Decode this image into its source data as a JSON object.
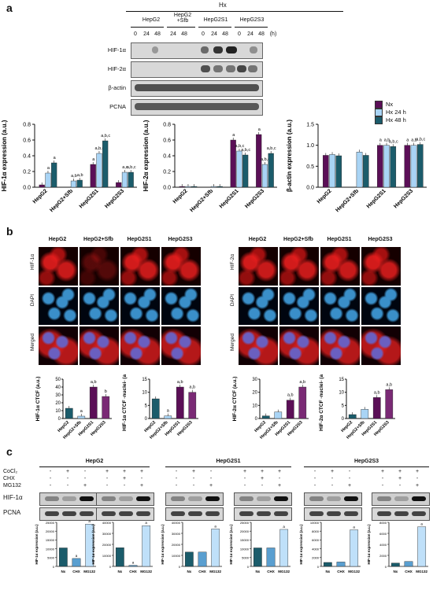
{
  "panels": {
    "a": "a",
    "b": "b",
    "c": "c"
  },
  "panel_a": {
    "hx_label": "Hx",
    "group_labels": [
      "HepG2",
      "HepG2\n+Sfb",
      "HepG2S1",
      "HepG2S3"
    ],
    "time_labels": [
      "0",
      "24",
      "48",
      "24",
      "48",
      "0",
      "24",
      "48",
      "0",
      "24",
      "48"
    ],
    "unit": "(h)",
    "row_labels": [
      "HIF-1α",
      "HIF-2α",
      "β-actin",
      "PCNA"
    ],
    "legend": [
      {
        "label": "Nx",
        "color": "#5b0f57"
      },
      {
        "label": "Hx 24 h",
        "color": "#a9d4f5"
      },
      {
        "label": "Hx 48 h",
        "color": "#1b5c6b"
      }
    ]
  },
  "chart_data": [
    {
      "type": "bar",
      "ylabel": "HIF-1α expression (a.u.)",
      "categories": [
        "HepG2",
        "HepG2+Sfb",
        "HepG2S1",
        "HepG2S3"
      ],
      "yticks": [
        "0.0",
        "0.2",
        "0.4",
        "0.6",
        "0.8"
      ],
      "ylim": [
        0,
        0.8
      ],
      "series": [
        {
          "name": "Nx",
          "values": [
            0.03,
            null,
            0.29,
            0.06
          ]
        },
        {
          "name": "Hx 24 h",
          "values": [
            0.18,
            0.08,
            0.43,
            0.19
          ]
        },
        {
          "name": "Hx 48 h",
          "values": [
            0.31,
            0.09,
            0.59,
            0.19
          ]
        }
      ],
      "annotations": [
        [
          "",
          "a",
          "a"
        ],
        [
          "",
          "a,b",
          "a,b"
        ],
        [
          "a",
          "a,b,c",
          "a,b,c"
        ],
        [
          "",
          "a,c",
          "a,b,c"
        ]
      ]
    },
    {
      "type": "bar",
      "ylabel": "HIF-2α expression (a.u.)",
      "categories": [
        "HepG2",
        "HepG2+Sfb",
        "HepG2S1",
        "HepG2S3"
      ],
      "yticks": [
        "0.0",
        "0.2",
        "0.4",
        "0.6",
        "0.8"
      ],
      "ylim": [
        0,
        0.8
      ],
      "series": [
        {
          "name": "Nx",
          "values": [
            0.01,
            null,
            0.6,
            0.67
          ]
        },
        {
          "name": "Hx 24 h",
          "values": [
            0.01,
            0.01,
            0.46,
            0.29
          ]
        },
        {
          "name": "Hx 48 h",
          "values": [
            0.01,
            0.01,
            0.41,
            0.43
          ]
        }
      ],
      "annotations": [
        [
          "",
          "",
          ""
        ],
        [
          "",
          "",
          ""
        ],
        [
          "a",
          "a,b,c",
          "a,b,c"
        ],
        [
          "a",
          "a,b,c",
          "a,b,c"
        ]
      ]
    },
    {
      "type": "bar",
      "ylabel": "β-actin expression (a.u.)",
      "categories": [
        "HepG2",
        "HepG2+Sfb",
        "HepG2S1",
        "HepG2S3"
      ],
      "yticks": [
        "0.0",
        "0.5",
        "1.0",
        "1.5"
      ],
      "ylim": [
        0,
        1.5
      ],
      "series": [
        {
          "name": "Nx",
          "values": [
            0.76,
            null,
            1.0,
            1.0
          ]
        },
        {
          "name": "Hx 24 h",
          "values": [
            0.78,
            0.84,
            1.0,
            1.0
          ]
        },
        {
          "name": "Hx 48 h",
          "values": [
            0.75,
            0.76,
            0.97,
            1.02
          ]
        }
      ],
      "annotations": [
        [
          "",
          "",
          ""
        ],
        [
          "",
          "",
          ""
        ],
        [
          "a",
          "a,b",
          "a,b,c"
        ],
        [
          "a",
          "a,b",
          "a,b,c"
        ]
      ]
    },
    {
      "type": "bar",
      "ylabel": "HIF-1α CTCF (a.u.)",
      "categories": [
        "HepG2",
        "HepG2+Sfb",
        "HepG2S1",
        "HepG2S3"
      ],
      "yticks": [
        "0",
        "10",
        "20",
        "30",
        "40",
        "50"
      ],
      "ylim": [
        0,
        50
      ],
      "values": [
        13,
        3,
        40,
        28
      ],
      "annotations": [
        "",
        "a",
        "a,b",
        "b"
      ]
    },
    {
      "type": "bar",
      "ylabel": "HIF-1α CTCF -nuclei- (a.u.)",
      "categories": [
        "HepG2",
        "HepG2+Sfb",
        "HepG2S1",
        "HepG2S3"
      ],
      "yticks": [
        "0",
        "5",
        "10",
        "15"
      ],
      "ylim": [
        0,
        15
      ],
      "values": [
        7.5,
        1,
        12,
        10
      ],
      "annotations": [
        "",
        "a",
        "a,b",
        "a,b"
      ]
    },
    {
      "type": "bar",
      "ylabel": "HIF-2α CTCF (a.u.)",
      "categories": [
        "HepG2",
        "HepG2+Sfb",
        "HepG2S1",
        "HepG2S3"
      ],
      "yticks": [
        "0",
        "10",
        "20",
        "30"
      ],
      "ylim": [
        0,
        30
      ],
      "values": [
        2,
        5,
        14,
        24
      ],
      "annotations": [
        "",
        "",
        "a,b",
        "a,b"
      ]
    },
    {
      "type": "bar",
      "ylabel": "HIF-2α CTCF -nuclei- (a.u.)",
      "categories": [
        "HepG2",
        "HepG2+Sfb",
        "HepG2S1",
        "HepG2S3"
      ],
      "yticks": [
        "0",
        "5",
        "10",
        "15"
      ],
      "ylim": [
        0,
        15
      ],
      "values": [
        1.5,
        3.5,
        8,
        11
      ],
      "annotations": [
        "",
        "",
        "a,b",
        "a,b"
      ]
    },
    {
      "type": "bar",
      "ylabel": "HIF-1α expression (a.u.)",
      "categories": [
        "Nx",
        "CHX",
        "MG132"
      ],
      "yticks": [
        "0",
        "5000",
        "10000",
        "15000",
        "20000",
        "25000"
      ],
      "ylim": [
        0,
        25000
      ],
      "values": [
        10500,
        4500,
        24000
      ],
      "annotations": [
        "",
        "a",
        "a"
      ]
    },
    {
      "type": "bar",
      "ylabel": "HIF-1α expression (a.u.)",
      "categories": [
        "Nx",
        "CHX",
        "MG132"
      ],
      "yticks": [
        "0",
        "10000",
        "20000",
        "30000",
        "40000"
      ],
      "ylim": [
        0,
        40000
      ],
      "values": [
        17000,
        1000,
        37000
      ],
      "annotations": [
        "",
        "a",
        "a"
      ]
    },
    {
      "type": "bar",
      "ylabel": "HIF-1α expression (a.u.)",
      "categories": [
        "Nx",
        "CHX",
        "MG132"
      ],
      "yticks": [
        "0",
        "10000",
        "20000",
        "30000",
        "40000"
      ],
      "ylim": [
        0,
        40000
      ],
      "values": [
        13000,
        13000,
        34000
      ],
      "annotations": [
        "",
        "",
        "a"
      ]
    },
    {
      "type": "bar",
      "ylabel": "HIF-1α expression (a.u.)",
      "categories": [
        "Nx",
        "CHX",
        "MG132"
      ],
      "yticks": [
        "0",
        "5000",
        "10000",
        "15000",
        "20000",
        "25000"
      ],
      "ylim": [
        0,
        25000
      ],
      "values": [
        10500,
        10500,
        21000
      ],
      "annotations": [
        "",
        "",
        "a"
      ]
    },
    {
      "type": "bar",
      "ylabel": "HIF-1α expression (a.u.)",
      "categories": [
        "Nx",
        "CHX",
        "MG132"
      ],
      "yticks": [
        "0",
        "2000",
        "4000",
        "6000",
        "8000",
        "10000"
      ],
      "ylim": [
        0,
        10000
      ],
      "values": [
        900,
        1000,
        8300
      ],
      "annotations": [
        "",
        "",
        "a"
      ]
    },
    {
      "type": "bar",
      "ylabel": "HIF-1α expression (a.u.)",
      "categories": [
        "Nx",
        "CHX",
        "MG132"
      ],
      "yticks": [
        "0",
        "2000",
        "4000",
        "6000",
        "8000"
      ],
      "ylim": [
        0,
        8000
      ],
      "values": [
        600,
        900,
        7200
      ],
      "annotations": [
        "",
        "",
        "a"
      ]
    }
  ],
  "panel_b": {
    "columns": [
      "HepG2",
      "HepG2+Sfb",
      "HepG2S1",
      "HepG2S3"
    ],
    "rows_left": [
      "HIF-1α",
      "DAPI",
      "Merged"
    ],
    "rows_right": [
      "HIF-2α",
      "DAPI",
      "Merged"
    ]
  },
  "panel_c": {
    "cell_lines": [
      "HepG2",
      "HepG2S1",
      "HepG2S3"
    ],
    "treatments": [
      "CoCl₂",
      "CHX",
      "MG132"
    ],
    "signs": [
      [
        "-",
        "-",
        "-"
      ],
      [
        "-",
        "+",
        "-"
      ],
      [
        "-",
        "-",
        "+"
      ],
      [
        "+",
        "+",
        "+"
      ],
      [
        "-",
        "+",
        "-"
      ],
      [
        "-",
        "-",
        "+"
      ]
    ],
    "row_labels": [
      "HIF-1α",
      "PCNA"
    ]
  }
}
